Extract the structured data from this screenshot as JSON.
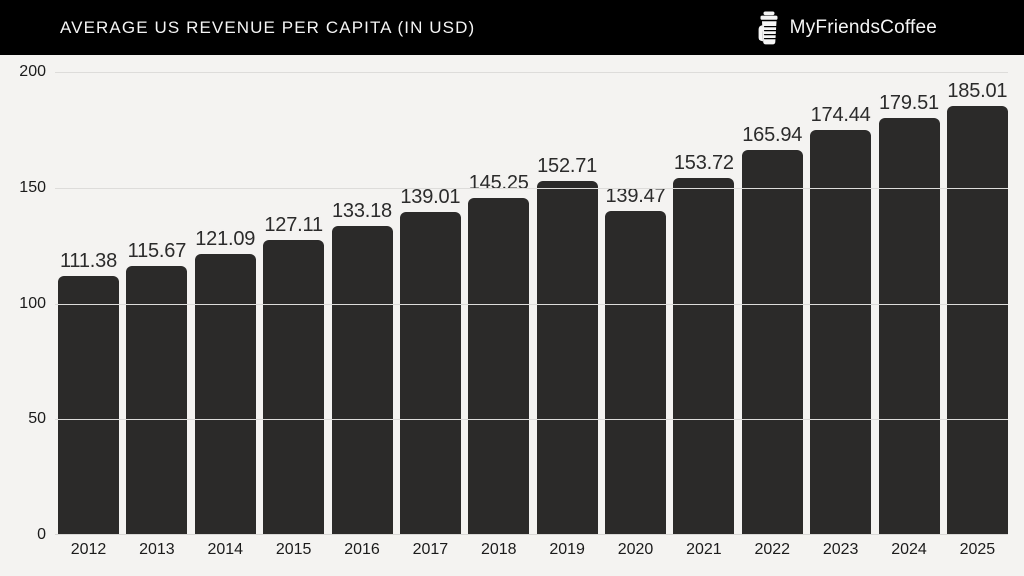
{
  "header": {
    "title": "AVERAGE US REVENUE PER CAPITA (IN USD)",
    "brand_name": "MyFriendsCoffee"
  },
  "chart_data": {
    "type": "bar",
    "title": "AVERAGE US REVENUE PER CAPITA (IN USD)",
    "categories": [
      "2012",
      "2013",
      "2014",
      "2015",
      "2016",
      "2017",
      "2018",
      "2019",
      "2020",
      "2021",
      "2022",
      "2023",
      "2024",
      "2025"
    ],
    "values": [
      111.38,
      115.67,
      121.09,
      127.11,
      133.18,
      139.01,
      145.25,
      152.71,
      139.47,
      153.72,
      165.94,
      174.44,
      179.51,
      185.01
    ],
    "value_labels": [
      "111.38",
      "115.67",
      "121.09",
      "127.11",
      "133.18",
      "139.01",
      "145.25",
      "152.71",
      "139.47",
      "153.72",
      "165.94",
      "174.44",
      "179.51",
      "185.01"
    ],
    "xlabel": "",
    "ylabel": "",
    "ylim": [
      0,
      200
    ],
    "yticks": [
      0,
      50,
      100,
      150,
      200
    ],
    "grid": true,
    "legend": false,
    "bar_color": "#2b2a29",
    "background_color": "#f4f3f1",
    "header_background": "#000000",
    "gridline_color": "#dddcda"
  }
}
